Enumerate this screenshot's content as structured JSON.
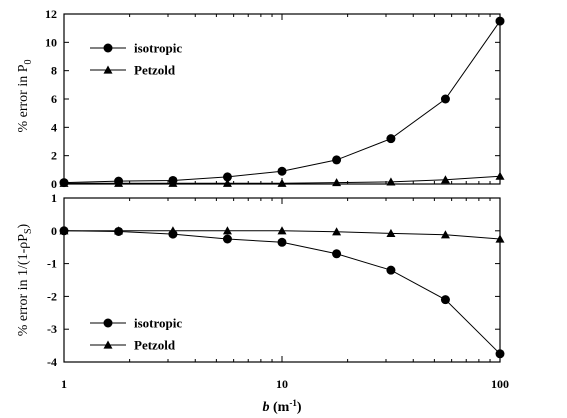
{
  "chart_data": [
    {
      "type": "line",
      "xscale": "log",
      "xlim": [
        1,
        100
      ],
      "ylim": [
        0,
        12
      ],
      "yticks": [
        0,
        2,
        4,
        6,
        8,
        10,
        12
      ],
      "ylabel_parts": [
        "% error in P",
        "0"
      ],
      "legend_position": "upper-left",
      "x": [
        1,
        1.78,
        3.16,
        5.62,
        10,
        17.8,
        31.6,
        56.2,
        100
      ],
      "series": [
        {
          "name": "isotropic",
          "marker": "circle",
          "values": [
            0.1,
            0.2,
            0.25,
            0.5,
            0.9,
            1.7,
            3.2,
            6.0,
            11.5
          ]
        },
        {
          "name": "Petzold",
          "marker": "triangle",
          "values": [
            0.05,
            0.05,
            0.05,
            0.05,
            0.05,
            0.1,
            0.15,
            0.3,
            0.55
          ]
        }
      ]
    },
    {
      "type": "line",
      "xscale": "log",
      "xlim": [
        1,
        100
      ],
      "ylim": [
        -4,
        1
      ],
      "yticks": [
        -4,
        -3,
        -2,
        -1,
        0,
        1
      ],
      "ylabel_parts": [
        "% error in 1/(1-ρP",
        "S",
        ")"
      ],
      "legend_position": "lower-left",
      "x": [
        1,
        1.78,
        3.16,
        5.62,
        10,
        17.8,
        31.6,
        56.2,
        100
      ],
      "series": [
        {
          "name": "isotropic",
          "marker": "circle",
          "values": [
            0,
            -0.02,
            -0.1,
            -0.25,
            -0.35,
            -0.7,
            -1.2,
            -2.1,
            -3.75
          ]
        },
        {
          "name": "Petzold",
          "marker": "triangle",
          "values": [
            0,
            0,
            0,
            0,
            0,
            -0.03,
            -0.08,
            -0.12,
            -0.25
          ]
        }
      ]
    }
  ],
  "xaxis": {
    "tick_labels": [
      "1",
      "10",
      "100"
    ],
    "tick_values": [
      1,
      10,
      100
    ],
    "label_var": "b",
    "label_units": " (m",
    "label_exp": "-1",
    "label_close": ")"
  }
}
